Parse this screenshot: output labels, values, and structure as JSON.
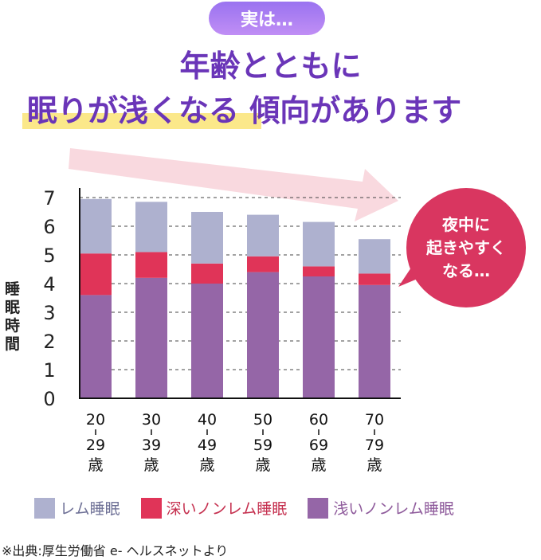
{
  "badge": "実は…",
  "headline": {
    "line1": "年齢とともに",
    "line2_highlight": "眠りが浅くなる",
    "line2_rest": "傾向があります"
  },
  "bubble": {
    "lines": [
      "夜中に",
      "起きやすく",
      "なる…"
    ]
  },
  "source": "※出典:厚生労働省 e- ヘルスネットより",
  "colors": {
    "rem": "#aeb1cf",
    "deep": "#e03458",
    "light": "#9566a7",
    "accent": "#6a35b8",
    "bubble": "#d93660"
  },
  "chart_data": {
    "type": "bar",
    "stacked": true,
    "ylabel": "睡眠時間",
    "ylim": [
      0,
      7
    ],
    "yticks": [
      "0",
      "1",
      "2",
      "3",
      "4",
      "5",
      "6",
      "7"
    ],
    "grid": true,
    "categories": [
      [
        "20",
        "29",
        "歳"
      ],
      [
        "30",
        "39",
        "歳"
      ],
      [
        "40",
        "49",
        "歳"
      ],
      [
        "50",
        "59",
        "歳"
      ],
      [
        "60",
        "69",
        "歳"
      ],
      [
        "70",
        "79",
        "歳"
      ]
    ],
    "series": [
      {
        "name": "浅いノンレム睡眠",
        "values": [
          3.6,
          4.2,
          4.0,
          4.4,
          4.25,
          3.95
        ]
      },
      {
        "name": "深いノンレム睡眠",
        "values": [
          1.45,
          0.9,
          0.7,
          0.55,
          0.35,
          0.4
        ]
      },
      {
        "name": "レム睡眠",
        "values": [
          1.9,
          1.75,
          1.8,
          1.45,
          1.55,
          1.2
        ]
      }
    ],
    "legend": [
      {
        "label": "レム睡眠",
        "key": "rem",
        "text": "#6e7096"
      },
      {
        "label": "深いノンレム睡眠",
        "key": "deep",
        "text": "#c5304f"
      },
      {
        "label": "浅いノンレム睡眠",
        "key": "light",
        "text": "#8e5a9b"
      }
    ],
    "legend_position": "bottom"
  }
}
